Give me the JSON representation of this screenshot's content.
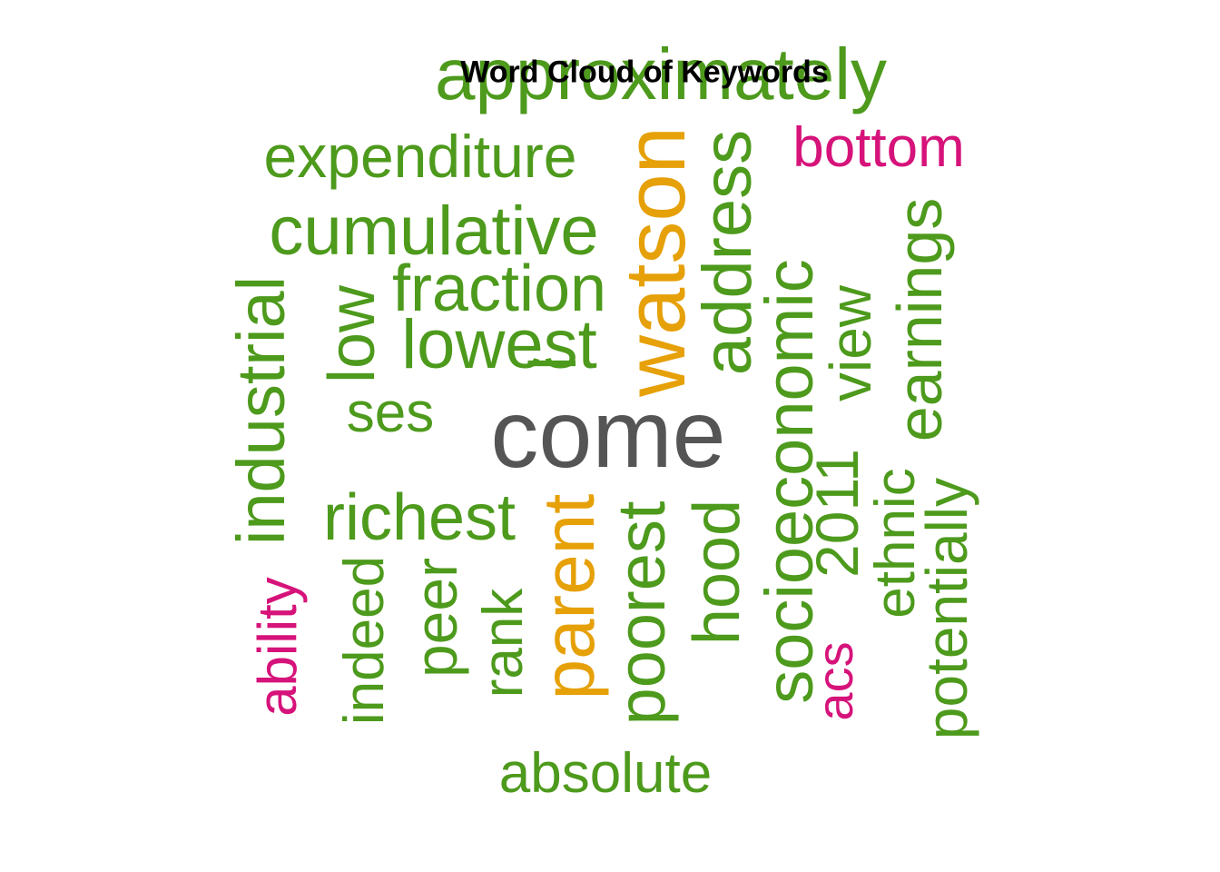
{
  "title": "Word Cloud of Keywords",
  "colors": {
    "green": "#4d9a1c",
    "orange": "#e6a008",
    "magenta": "#d6137a",
    "gray": "#555555"
  },
  "words": [
    {
      "text": "approximately",
      "color": "green"
    },
    {
      "text": "bottom",
      "color": "magenta"
    },
    {
      "text": "expenditure",
      "color": "green"
    },
    {
      "text": "cumulative",
      "color": "green"
    },
    {
      "text": "fraction",
      "color": "green"
    },
    {
      "text": "lowest",
      "color": "green"
    },
    {
      "text": "watson",
      "color": "orange"
    },
    {
      "text": "address",
      "color": "green"
    },
    {
      "text": "socioeconomic",
      "color": "green"
    },
    {
      "text": "view",
      "color": "green"
    },
    {
      "text": "earnings",
      "color": "green"
    },
    {
      "text": "industrial",
      "color": "green"
    },
    {
      "text": "low",
      "color": "green"
    },
    {
      "text": "ses",
      "color": "green"
    },
    {
      "text": "come",
      "color": "gray"
    },
    {
      "text": "l",
      "color": "green"
    },
    {
      "text": "2011",
      "color": "green"
    },
    {
      "text": "ethnic",
      "color": "green"
    },
    {
      "text": "potentially",
      "color": "green"
    },
    {
      "text": "richest",
      "color": "green"
    },
    {
      "text": "parent",
      "color": "orange"
    },
    {
      "text": "poorest",
      "color": "green"
    },
    {
      "text": "hood",
      "color": "green"
    },
    {
      "text": "ability",
      "color": "magenta"
    },
    {
      "text": "indeed",
      "color": "green"
    },
    {
      "text": "peer",
      "color": "green"
    },
    {
      "text": "rank",
      "color": "green"
    },
    {
      "text": "acs",
      "color": "magenta"
    },
    {
      "text": "absolute",
      "color": "green"
    }
  ]
}
